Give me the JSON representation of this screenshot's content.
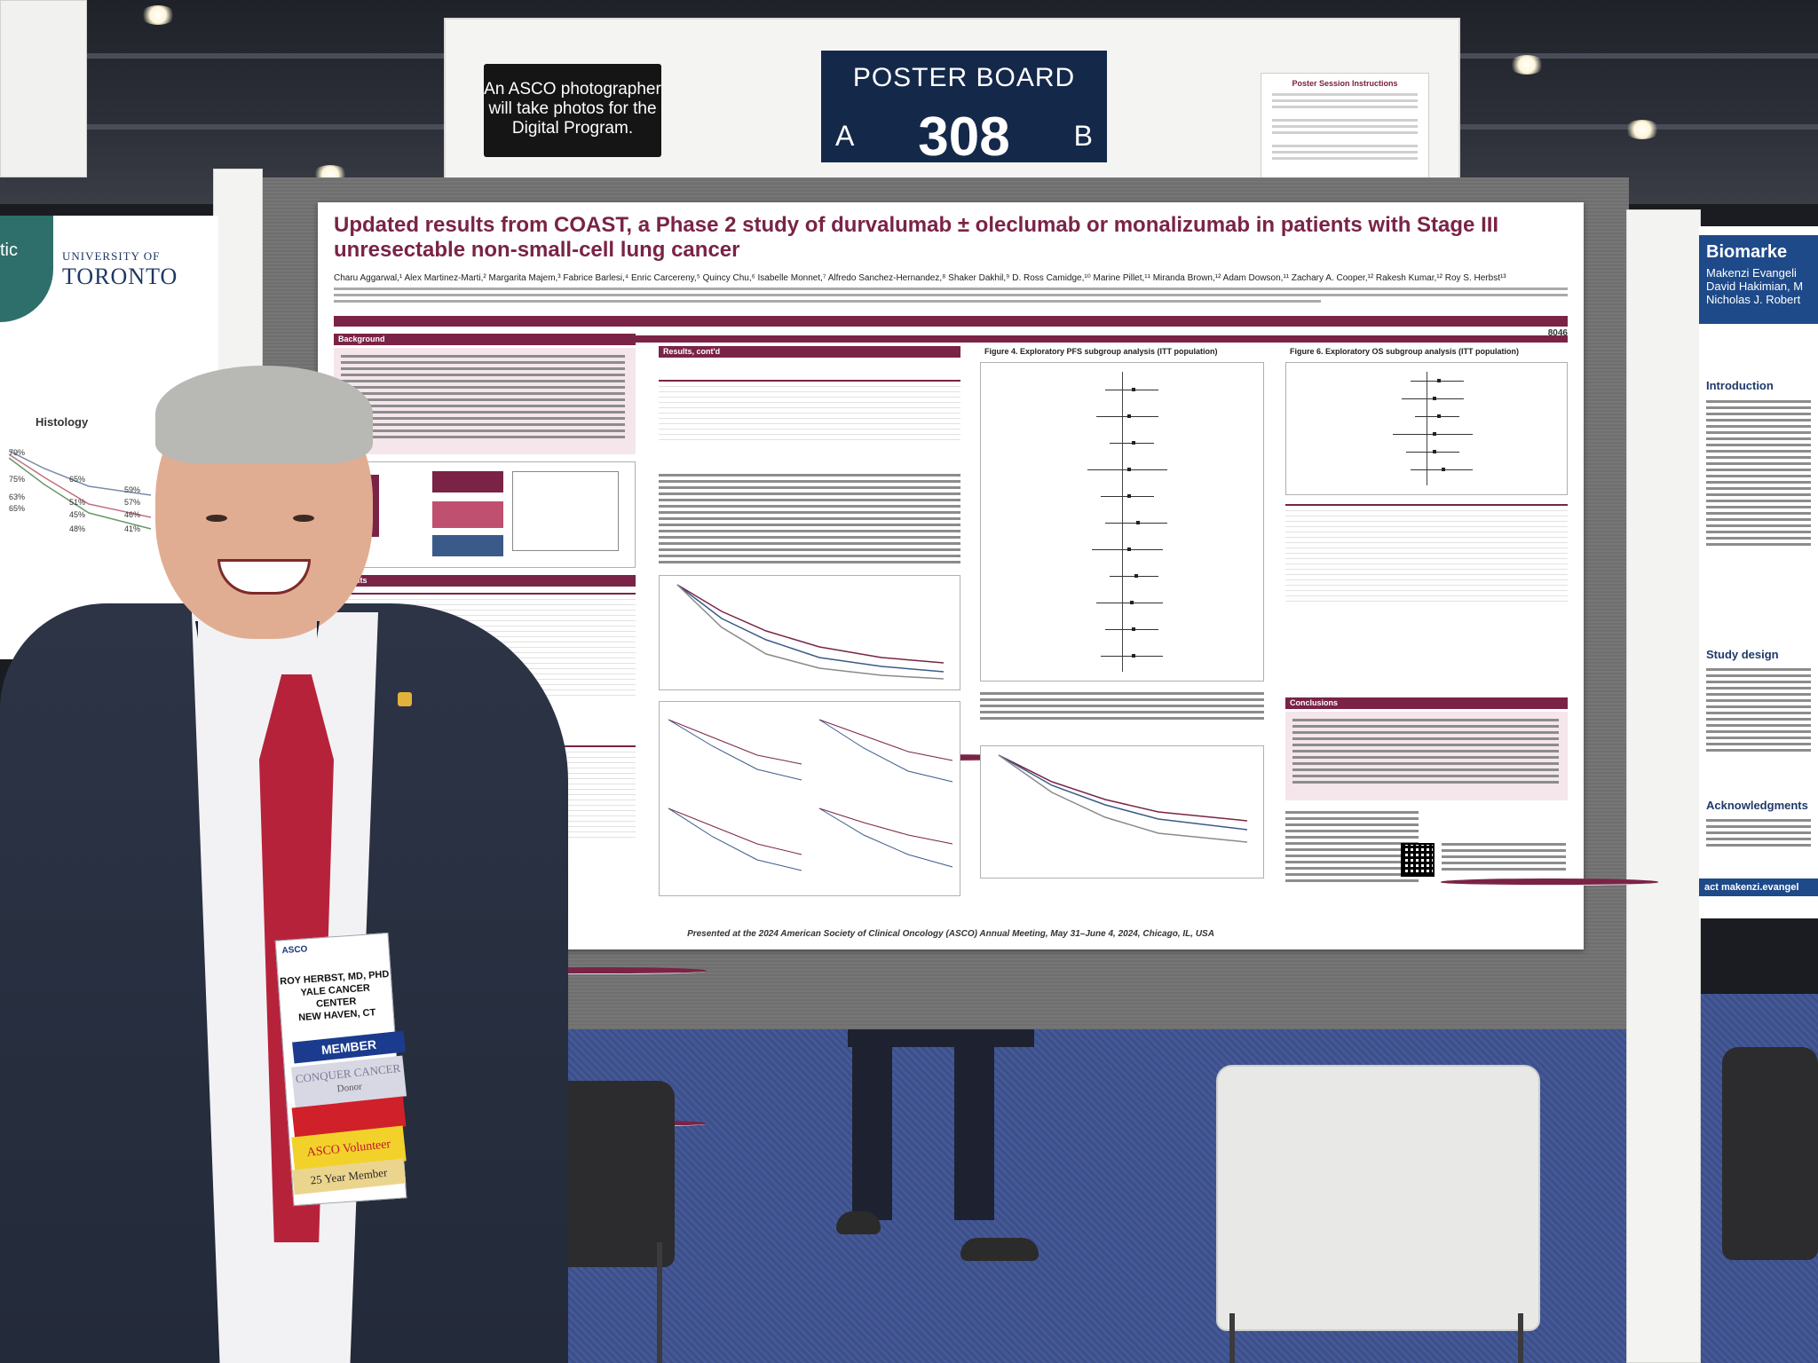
{
  "sign": {
    "asco_note": "An ASCO photographer will take photos for the Digital Program.",
    "board_title": "POSTER BOARD",
    "side_a": "A",
    "side_b": "B",
    "board_number": "308",
    "instructions_title": "Poster Session Instructions"
  },
  "poster": {
    "title": "Updated results from COAST, a Phase 2 study of durvalumab ± oleclumab or monalizumab in patients with Stage III unresectable non-small-cell lung cancer",
    "authors": "Charu Aggarwal,¹ Alex Martinez-Marti,² Margarita Majem,³ Fabrice Barlesi,⁴ Enric Carcereny,⁵ Quincy Chu,⁶ Isabelle Monnet,⁷ Alfredo Sanchez-Hernandez,⁸ Shaker Dakhil,⁹ D. Ross Camidge,¹⁰ Marine Pillet,¹¹ Miranda Brown,¹² Adam Dowson,¹¹ Zachary A. Cooper,¹² Rakesh Kumar,¹² Roy S. Herbst¹³",
    "poster_id": "8046",
    "sections": {
      "background": "Background",
      "results_contd": "Results, cont'd",
      "fig4": "Figure 4. Exploratory PFS subgroup analysis (ITT population)",
      "fig6": "Figure 6. Exploratory OS subgroup analysis (ITT population)",
      "conclusions": "Conclusions",
      "results": "Results"
    },
    "footer": "Presented at the 2024 American Society of Clinical Oncology (ASCO) Annual Meeting, May 31–June 4, 2024, Chicago, IL, USA"
  },
  "left_poster": {
    "tag": "tic",
    "university_small": "UNIVERSITY OF",
    "university_big": "TORONTO",
    "histology": "Histology",
    "pcts": [
      "79%",
      "75%",
      "65%",
      "63%",
      "65%",
      "51%",
      "59%",
      "57%",
      "46%",
      "45%",
      "48%",
      "41%"
    ]
  },
  "right_poster": {
    "title": "Biomarke",
    "authors": "Makenzi Evangeli\nDavid Hakimian, M\nNicholas J. Robert",
    "introduction": "Introduction",
    "study_design": "Study design",
    "acknowledgments": "Acknowledgments",
    "contact": "act makenzi.evangel"
  },
  "badge": {
    "org": "ASCO",
    "name": "ROY HERBST, MD, PHD\nYALE CANCER CENTER\nNEW HAVEN, CT",
    "member": "MEMBER",
    "conquer": "CONQUER CANCER",
    "donor": "Donor",
    "volunteer": "ASCO Volunteer",
    "years": "25 Year Member"
  }
}
